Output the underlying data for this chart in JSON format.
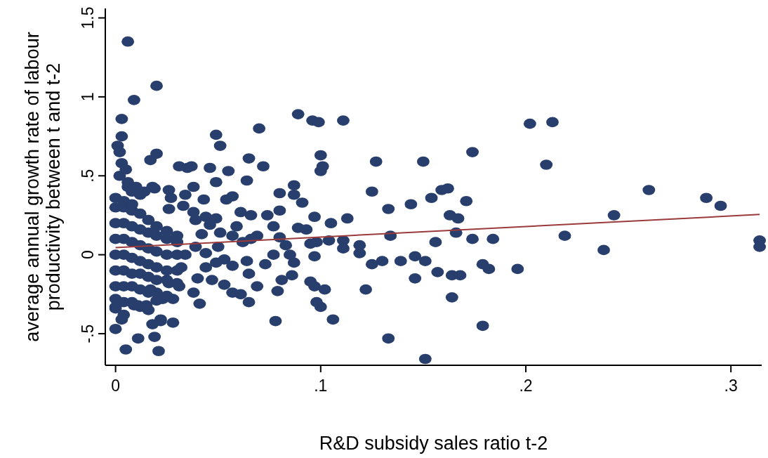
{
  "chart_data": {
    "type": "scatter",
    "xlabel": "R&D subsidy sales ratio t-2",
    "ylabel": "average annual growth rate of labour\nproductivity between t and t-2",
    "xlim": [
      -0.005,
      0.315
    ],
    "ylim": [
      -0.7,
      1.56
    ],
    "xticks": [
      0,
      {
        "value": 0.1,
        "label": ".1"
      },
      {
        "value": 0.2,
        "label": ".2"
      },
      {
        "value": 0.3,
        "label": ".3"
      }
    ],
    "yticks": [
      {
        "value": -0.5,
        "label": "-.5"
      },
      0,
      {
        "value": 0.5,
        "label": ".5"
      },
      1,
      1.5
    ],
    "grid": false,
    "series": [
      {
        "color": "#283e6d",
        "marker": "circle",
        "x": [
          0.006,
          0.02,
          0.009,
          0.003,
          0.003,
          0.001,
          0.002,
          0.02,
          0.003,
          0.005,
          0.006,
          0.049,
          0.051,
          0.07,
          0.072,
          0.055,
          0.065,
          0.035,
          0.046,
          0.017,
          0.019,
          0.089,
          0.096,
          0.099,
          0.111,
          0.1,
          0.101,
          0.1,
          0.127,
          0.15,
          0.174,
          0.202,
          0.213,
          0.21,
          0.26,
          0.288,
          0.295,
          0.243,
          0.219,
          0.238,
          0.314,
          0.314,
          0.196,
          0.184,
          0.174,
          0.182,
          0.179,
          0.179,
          0.171,
          0.167,
          0.163,
          0.166,
          0.162,
          0.159,
          0.154,
          0.156,
          0.164,
          0.168,
          0.164,
          0.157,
          0.151,
          0.151,
          0.146,
          0.146,
          0.144,
          0.134,
          0.133,
          0.133,
          0.139,
          0.13,
          0.125,
          0.122,
          0.125,
          0.119,
          0.119,
          0.113,
          0.111,
          0.111,
          0.105,
          0.104,
          0.106,
          0.102,
          0.1,
          0.097,
          0.097,
          0.098,
          0.097,
          0.031,
          0.037,
          0.064,
          0.049,
          0.018,
          0.026,
          0.038,
          0.043,
          0.057,
          0.054,
          0.034,
          0.027,
          0.08,
          0.087,
          0.087,
          0.091,
          0.08,
          0.074,
          0.066,
          0.061,
          0.044,
          0.038,
          0.033,
          0.026,
          0.077,
          0.059,
          0.049,
          0.051,
          0.089,
          0.093,
          0.08,
          0.069,
          0.057,
          0.05,
          0.062,
          0.066,
          0.083,
          0.095,
          0.077,
          0.053,
          0.057,
          0.064,
          0.073,
          0.085,
          0.087,
          0.065,
          0.086,
          0.081,
          0.069,
          0.095,
          0.053,
          0.047,
          0.04,
          0.057,
          0.061,
          0.065,
          0.079,
          0.098,
          0.038,
          0.041,
          0.031,
          0.028,
          0.023,
          0.02,
          0.015,
          0.022,
          0.078,
          0.011,
          0.003,
          0.0,
          0.011,
          0.019,
          0.005,
          0.021,
          0.0,
          0.009,
          0.017,
          0.026,
          0.032,
          0.034,
          0.039,
          0.044,
          0.044,
          0.049,
          0.046,
          0.039,
          0.042,
          0.0,
          0.004,
          0.008,
          0.012,
          0.016,
          0.02,
          0.025,
          0.03,
          0.0,
          0.004,
          0.008,
          0.012,
          0.016,
          0.02,
          0.025,
          0.03,
          0.0,
          0.004,
          0.008,
          0.012,
          0.016,
          0.02,
          0.025,
          0.03,
          0.0,
          0.004,
          0.008,
          0.012,
          0.016,
          0.02,
          0.025,
          0.03,
          0.0,
          0.004,
          0.008,
          0.012,
          0.016,
          0.02,
          0.025,
          0.03,
          0.0,
          0.004,
          0.008,
          0.012,
          0.016,
          0.02,
          0.025,
          0.0,
          0.004,
          0.008,
          0.012,
          0.016,
          0.0,
          0.004,
          0.008,
          0.012,
          0.0,
          0.004,
          0.008,
          0.002,
          0.006,
          0.01,
          0.014,
          0.018,
          0.022,
          0.028
        ],
        "values": [
          1.35,
          1.07,
          0.98,
          0.86,
          0.75,
          0.69,
          0.65,
          0.64,
          0.58,
          0.54,
          0.43,
          0.76,
          0.69,
          0.8,
          0.56,
          0.53,
          0.61,
          0.55,
          0.55,
          0.6,
          0.42,
          0.89,
          0.85,
          0.84,
          0.85,
          0.63,
          0.56,
          0.53,
          0.59,
          0.59,
          0.65,
          0.83,
          0.84,
          0.57,
          0.41,
          0.36,
          0.31,
          0.25,
          0.12,
          0.03,
          0.09,
          0.05,
          -0.09,
          0.1,
          0.1,
          -0.09,
          -0.06,
          -0.45,
          0.34,
          0.23,
          0.25,
          0.14,
          0.42,
          0.41,
          0.36,
          0.08,
          -0.13,
          -0.13,
          -0.27,
          -0.11,
          -0.66,
          -0.04,
          -0.01,
          -0.15,
          0.32,
          0.12,
          0.29,
          -0.53,
          -0.04,
          -0.04,
          -0.06,
          -0.22,
          0.4,
          0.01,
          0.06,
          0.23,
          0.09,
          0.04,
          0.2,
          0.09,
          -0.41,
          -0.22,
          -0.33,
          -0.2,
          0.24,
          0.08,
          -0.01,
          0.56,
          0.56,
          0.47,
          0.46,
          0.43,
          0.41,
          0.43,
          0.35,
          0.37,
          0.35,
          0.38,
          0.36,
          0.39,
          0.44,
          0.38,
          0.33,
          0.28,
          0.25,
          0.25,
          0.27,
          0.24,
          0.27,
          0.31,
          0.29,
          0.18,
          0.18,
          0.23,
          0.14,
          0.17,
          0.16,
          0.11,
          0.12,
          0.12,
          0.05,
          0.08,
          0.1,
          0.06,
          0.07,
          0.0,
          -0.03,
          -0.07,
          -0.04,
          -0.06,
          0.0,
          -0.05,
          -0.12,
          -0.13,
          -0.16,
          -0.2,
          -0.17,
          -0.19,
          -0.16,
          -0.15,
          -0.24,
          -0.25,
          -0.3,
          -0.23,
          -0.3,
          -0.24,
          -0.31,
          -0.2,
          -0.28,
          -0.28,
          -0.29,
          -0.32,
          -0.41,
          -0.42,
          -0.32,
          -0.41,
          -0.47,
          -0.53,
          -0.52,
          -0.6,
          -0.61,
          -0.33,
          -0.32,
          -0.22,
          -0.18,
          -0.08,
          0.0,
          0.05,
          0.01,
          -0.08,
          -0.05,
          0.19,
          0.22,
          0.13,
          0.3,
          0.3,
          0.28,
          0.26,
          0.22,
          0.18,
          0.15,
          0.12,
          0.2,
          0.2,
          0.18,
          0.16,
          0.14,
          0.12,
          0.1,
          0.08,
          0.1,
          0.1,
          0.08,
          0.06,
          0.04,
          0.02,
          0.0,
          0.0,
          0.0,
          0.0,
          -0.02,
          -0.04,
          -0.06,
          -0.08,
          -0.1,
          -0.1,
          -0.1,
          -0.1,
          -0.12,
          -0.12,
          -0.14,
          -0.16,
          -0.16,
          -0.18,
          -0.2,
          -0.2,
          -0.2,
          -0.22,
          -0.24,
          -0.24,
          -0.26,
          -0.28,
          -0.3,
          -0.3,
          -0.33,
          -0.35,
          -0.34,
          -0.38,
          0.4,
          0.38,
          0.36,
          0.34,
          0.32,
          0.5,
          0.46,
          0.43,
          0.4,
          -0.44,
          -0.42,
          -0.43
        ]
      },
      {
        "type": "line",
        "color": "#9b3a3a",
        "x": [
          0,
          0.314
        ],
        "values": [
          0.045,
          0.255
        ]
      }
    ]
  }
}
